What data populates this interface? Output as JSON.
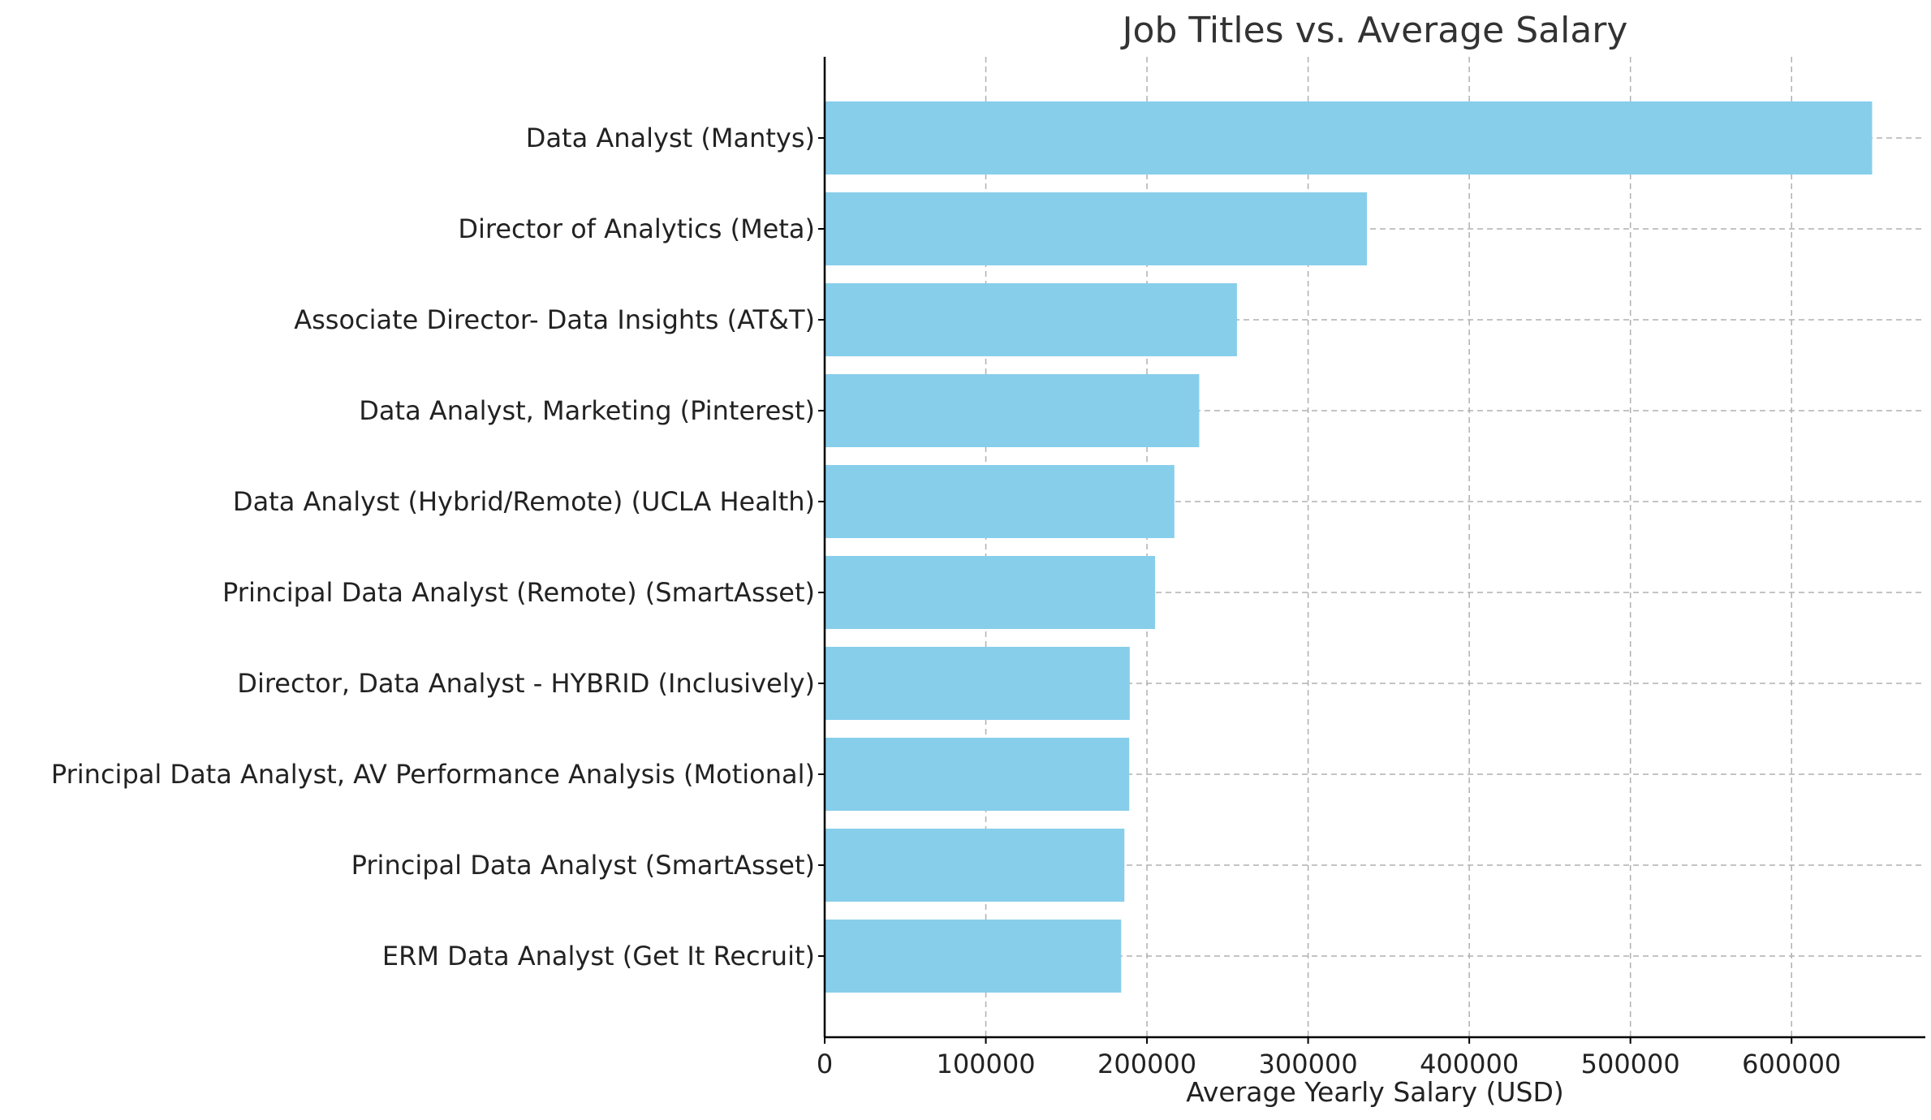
{
  "chart_data": {
    "type": "bar",
    "orientation": "horizontal",
    "title": "Job Titles vs. Average Salary",
    "xlabel": "Average Yearly Salary (USD)",
    "ylabel": "",
    "categories": [
      "Data Analyst (Mantys)",
      "Director of Analytics (Meta)",
      "Associate Director- Data Insights (AT&T)",
      "Data Analyst, Marketing (Pinterest)",
      "Data Analyst (Hybrid/Remote) (UCLA Health)",
      "Principal Data Analyst (Remote) (SmartAsset)",
      "Director, Data Analyst - HYBRID (Inclusively)",
      "Principal Data Analyst, AV Performance Analysis (Motional)",
      "Principal Data Analyst (SmartAsset)",
      "ERM Data Analyst (Get It Recruit)"
    ],
    "values": [
      650000,
      336500,
      255829.5,
      232423,
      217000,
      205000,
      189309,
      189000,
      186000,
      184000
    ],
    "xlim": [
      0,
      683000
    ],
    "xticks": [
      0,
      100000,
      200000,
      300000,
      400000,
      500000,
      600000
    ],
    "xtick_labels": [
      "0",
      "100000",
      "200000",
      "300000",
      "400000",
      "500000",
      "600000"
    ],
    "bar_color": "#87CEEB",
    "grid": true,
    "grid_style": "dashed",
    "grid_color": "#b0b0b0"
  }
}
